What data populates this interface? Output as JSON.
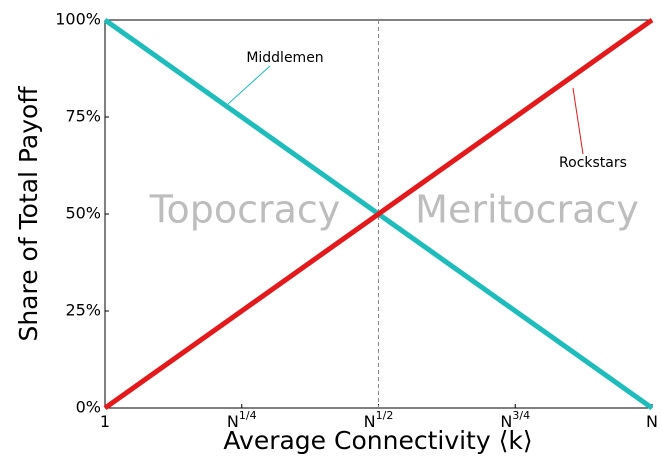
{
  "chart_data": {
    "type": "line",
    "x": [
      0,
      1
    ],
    "series": [
      {
        "name": "Middlemen",
        "color": "#1fbcbc",
        "values": [
          100,
          0
        ]
      },
      {
        "name": "Rockstars",
        "color": "#e3191c",
        "values": [
          0,
          100
        ]
      }
    ],
    "xlim": [
      0,
      1
    ],
    "xticks": [
      {
        "value": 0,
        "label": "1"
      },
      {
        "value": 0.25,
        "label": "N",
        "superscript": "1/4"
      },
      {
        "value": 0.5,
        "label": "N",
        "superscript": "1/2"
      },
      {
        "value": 0.75,
        "label": "N",
        "superscript": "3/4"
      },
      {
        "value": 1,
        "label": "N"
      }
    ],
    "ylim": [
      0,
      100
    ],
    "yticks": [
      {
        "value": 0,
        "label": "0%"
      },
      {
        "value": 25,
        "label": "25%"
      },
      {
        "value": 50,
        "label": "50%"
      },
      {
        "value": 75,
        "label": "75%"
      },
      {
        "value": 100,
        "label": "100%"
      }
    ],
    "vline": 0.5,
    "xlabel": "Average Connectivity ⟨k⟩",
    "ylabel": "Share of Total Payoff",
    "annotations": [
      "Topocracy",
      "Meritocracy"
    ]
  }
}
